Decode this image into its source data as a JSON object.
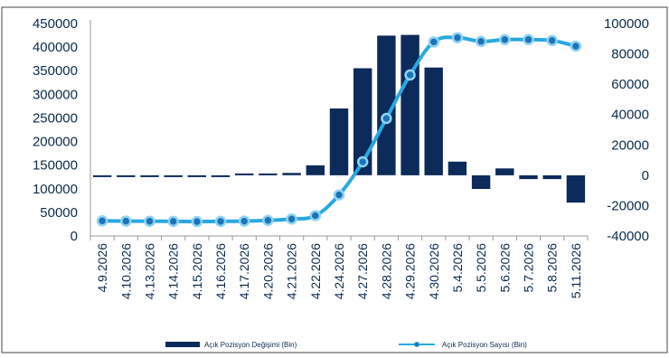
{
  "chart_data": {
    "type": "bar+line",
    "title": "",
    "categories": [
      "4.9.2026",
      "4.10.2026",
      "4.13.2026",
      "4.14.2026",
      "4.15.2026",
      "4.16.2026",
      "4.17.2026",
      "4.20.2026",
      "4.21.2026",
      "4.22.2026",
      "4.24.2026",
      "4.27.2026",
      "4.28.2026",
      "4.29.2026",
      "4.30.2026",
      "5.4.2026",
      "5.5.2026",
      "5.6.2026",
      "5.7.2026",
      "5.8.2026",
      "5.11.2026"
    ],
    "series": [
      {
        "name": "Açık Pozisyon Değişimi (Bin)",
        "type": "bar",
        "axis": "right",
        "color": "#0c2a5a",
        "values": [
          -300,
          -400,
          -200,
          -500,
          -300,
          -200,
          200,
          700,
          1500,
          6500,
          44000,
          70500,
          92000,
          92500,
          71000,
          9000,
          -9000,
          4500,
          -2500,
          -2500,
          -18000
        ]
      },
      {
        "name": "Açık Pozisyon Sayısı (Bin)",
        "type": "line",
        "axis": "left",
        "color": "#29a8e0",
        "values": [
          32000,
          31500,
          31200,
          30800,
          30500,
          30900,
          31500,
          33000,
          36000,
          43000,
          87000,
          157000,
          249000,
          341000,
          411000,
          420000,
          412000,
          416000,
          416000,
          414000,
          402000
        ]
      }
    ],
    "yAxisLeft": {
      "min": 0,
      "max": 450000,
      "step": 50000,
      "ticks": [
        "0",
        "50000",
        "100000",
        "150000",
        "200000",
        "250000",
        "300000",
        "350000",
        "400000",
        "450000"
      ]
    },
    "yAxisRight": {
      "min": -40000,
      "max": 100000,
      "step": 20000,
      "ticks": [
        "-40000",
        "-20000",
        "0",
        "20000",
        "40000",
        "60000",
        "80000",
        "100000"
      ]
    },
    "xlabel": "",
    "ylabel": "",
    "grid": false,
    "legend": "bottom"
  }
}
